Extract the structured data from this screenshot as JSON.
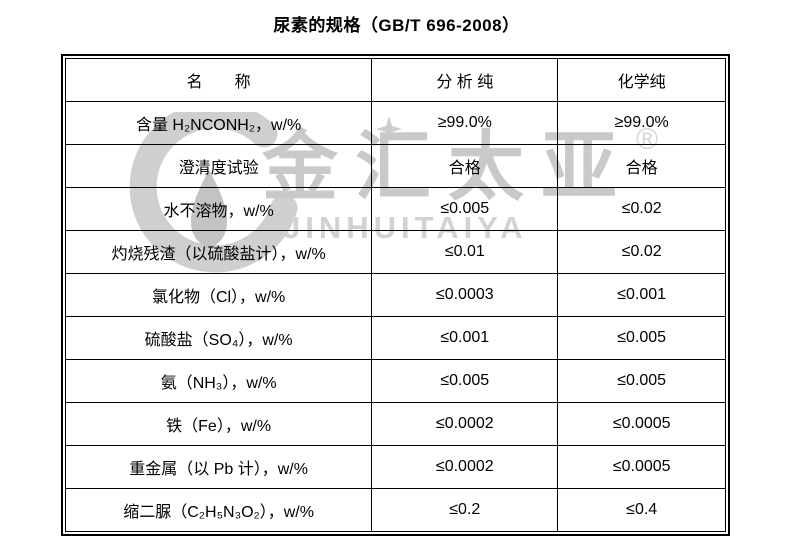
{
  "page": {
    "title": "尿素的规格（GB/T 696-2008）"
  },
  "watermark": {
    "brand_cjk": "金汇太亚",
    "brand_latin": "JINHUITAIYA",
    "registered_symbol": "®",
    "color": "#cccccc"
  },
  "spec_table": {
    "columns": [
      "名　　称",
      "分 析 纯",
      "化学纯"
    ],
    "rows": [
      [
        "含量 H₂NCONH₂，w/%",
        "≥99.0%",
        "≥99.0%"
      ],
      [
        "澄清度试验",
        "合格",
        "合格"
      ],
      [
        "水不溶物，w/%",
        "≤0.005",
        "≤0.02"
      ],
      [
        "灼烧残渣（以硫酸盐计），w/%",
        "≤0.01",
        "≤0.02"
      ],
      [
        "氯化物（Cl），w/%",
        "≤0.0003",
        "≤0.001"
      ],
      [
        "硫酸盐（SO₄），w/%",
        "≤0.001",
        "≤0.005"
      ],
      [
        "氨（NH₃），w/%",
        "≤0.005",
        "≤0.005"
      ],
      [
        "铁（Fe），w/%",
        "≤0.0002",
        "≤0.0005"
      ],
      [
        "重金属（以 Pb 计），w/%",
        "≤0.0002",
        "≤0.0005"
      ],
      [
        "缩二脲（C₂H₅N₃O₂），w/%",
        "≤0.2",
        "≤0.4"
      ]
    ]
  }
}
